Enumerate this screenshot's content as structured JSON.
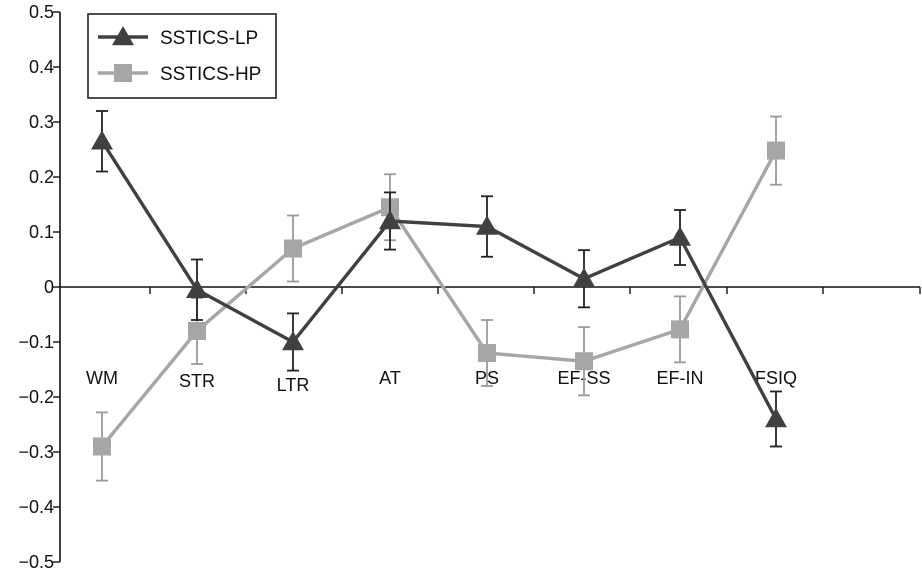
{
  "chart_data": {
    "type": "line",
    "categories": [
      "WM",
      "STR",
      "LTR",
      "AT",
      "PS",
      "EF-SS",
      "EF-IN",
      "FSIQ"
    ],
    "ylim": [
      -0.5,
      0.5
    ],
    "yticks": [
      "0.5",
      "0.4",
      "0.3",
      "0.2",
      "0.1",
      "0",
      "−0.1",
      "−0.2",
      "−0.3",
      "−0.4",
      "−0.5"
    ],
    "ytick_values": [
      0.5,
      0.4,
      0.3,
      0.2,
      0.1,
      0,
      -0.1,
      -0.2,
      -0.3,
      -0.4,
      -0.5
    ],
    "grid": false,
    "legend_position": "top-left",
    "series": [
      {
        "name": "SSTICS-LP",
        "marker": "triangle",
        "color": "#404040",
        "values": [
          0.265,
          -0.005,
          -0.1,
          0.12,
          0.11,
          0.015,
          0.09,
          -0.24
        ],
        "error": [
          0.055,
          0.055,
          0.052,
          0.052,
          0.055,
          0.052,
          0.05,
          0.05
        ]
      },
      {
        "name": "SSTICS-HP",
        "marker": "square",
        "color": "#a6a6a6",
        "values": [
          -0.29,
          -0.08,
          0.07,
          0.145,
          -0.12,
          -0.135,
          -0.077,
          0.248
        ],
        "error": [
          0.062,
          0.06,
          0.06,
          0.06,
          0.06,
          0.062,
          0.06,
          0.062
        ]
      }
    ]
  }
}
